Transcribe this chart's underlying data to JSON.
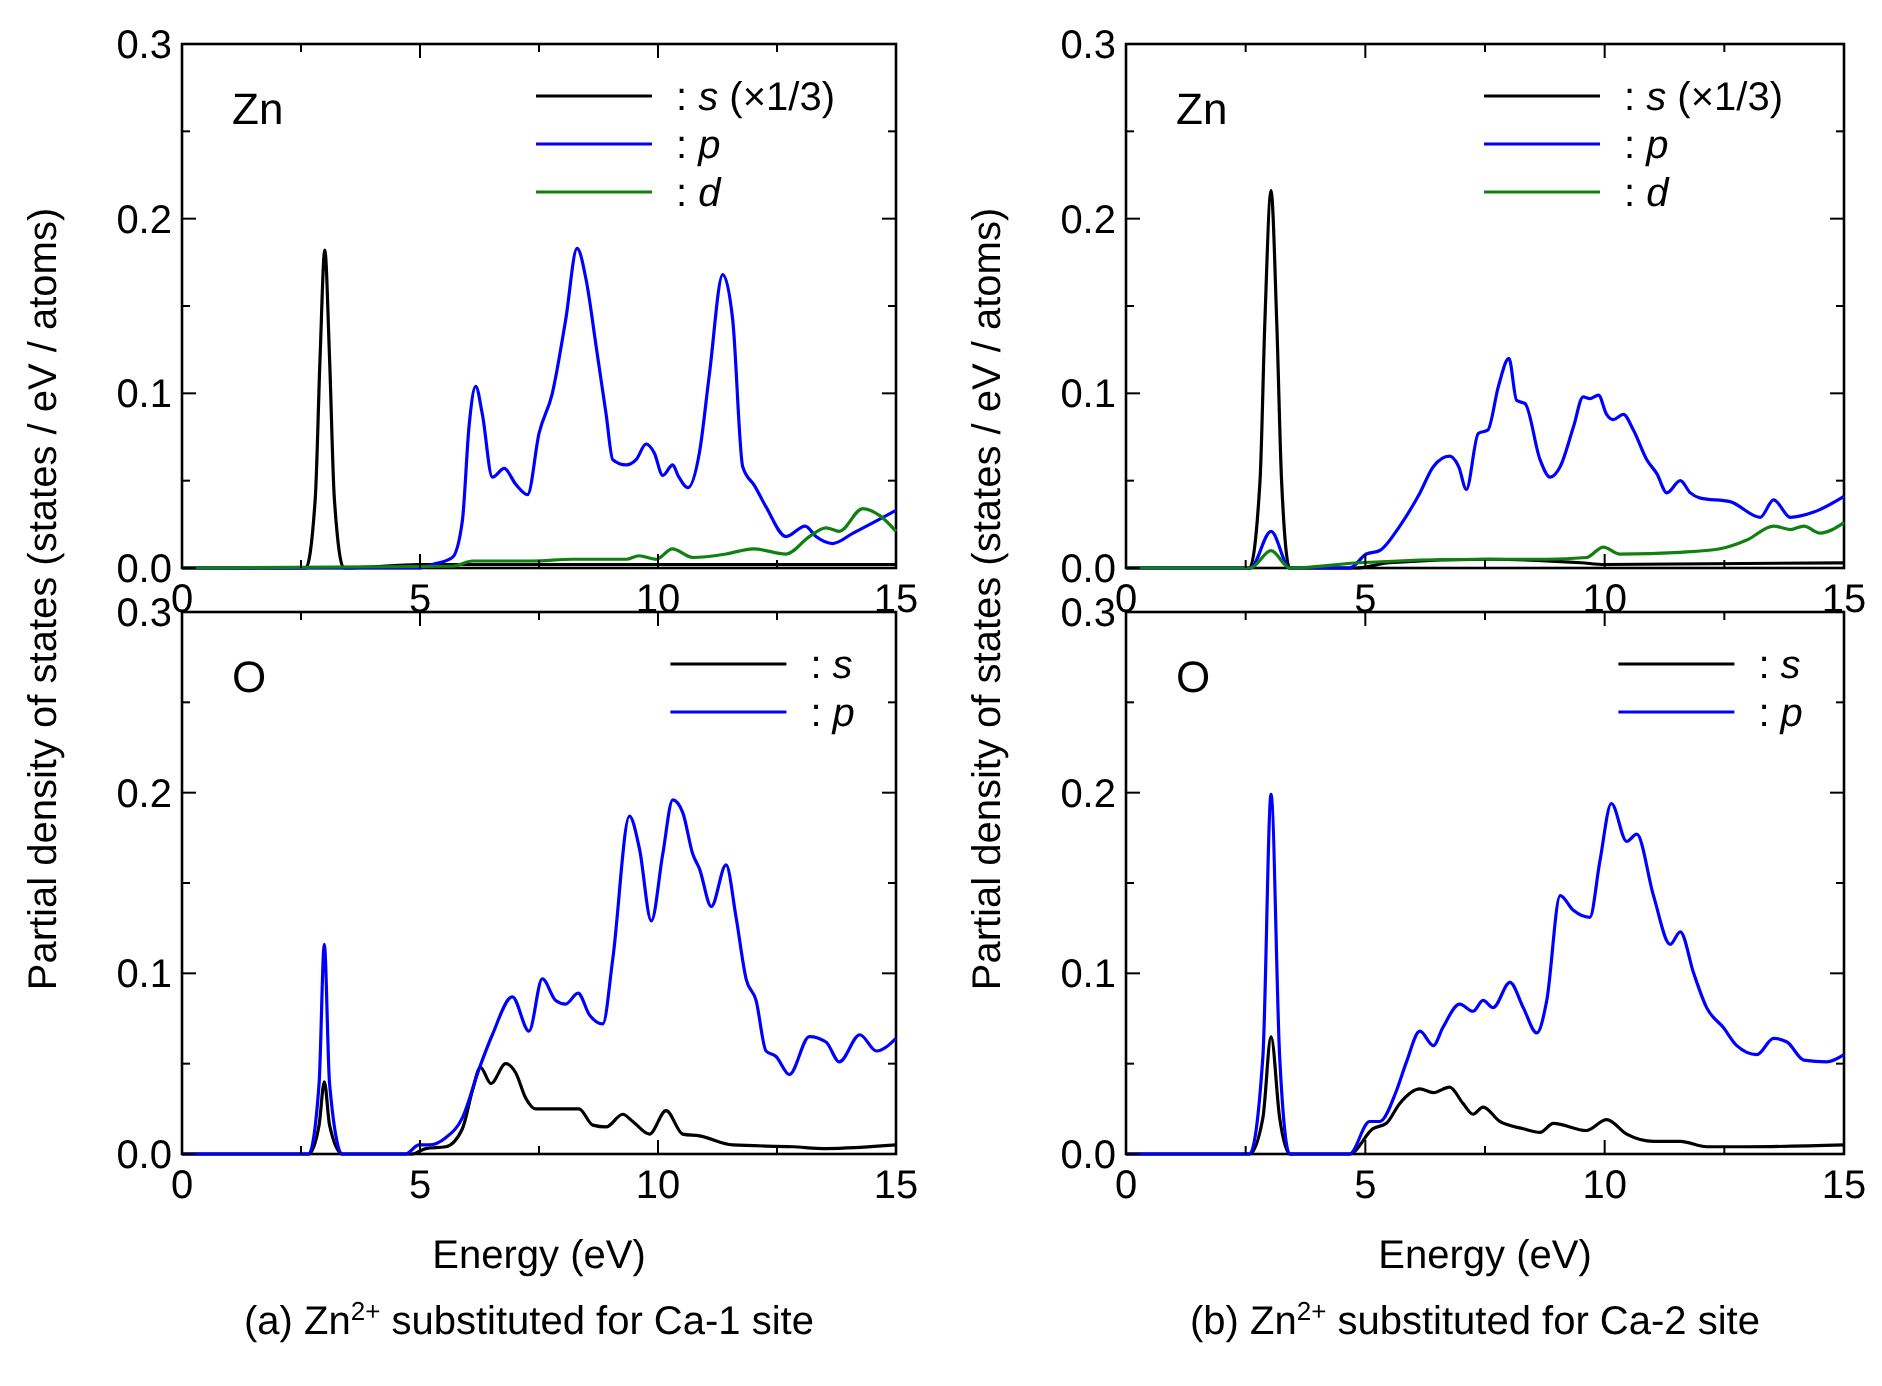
{
  "chart_data": [
    {
      "type": "line",
      "ylabel": "Partial density of states (states / eV / atoms)",
      "annotations": [
        "Zn"
      ],
      "legend": "top right",
      "xlim": [
        0,
        15
      ],
      "ylim": [
        0,
        0.3
      ],
      "xticks": [
        0,
        {
          "value": 2.5,
          "label": null
        },
        5,
        {
          "value": 7.5,
          "label": null
        },
        10,
        {
          "value": 12.5,
          "label": null
        },
        15
      ],
      "yticks": [
        {
          "value": 0,
          "label": "0.0"
        },
        {
          "value": 0.05,
          "label": null
        },
        0.1,
        {
          "value": 0.15,
          "label": null
        },
        0.2,
        {
          "value": 0.25,
          "label": null
        },
        0.3
      ],
      "series": [
        {
          "name": ": s (×1/3)",
          "color": "#000000",
          "x": [
            0,
            2.6,
            2.8,
            2.9,
            3.0,
            3.1,
            3.2,
            3.4,
            5,
            15
          ],
          "values": [
            0,
            0,
            0.04,
            0.12,
            0.182,
            0.12,
            0.04,
            0,
            0.002,
            0.002
          ]
        },
        {
          "name": ": p",
          "color": "#0000ff",
          "x": [
            0,
            4.98,
            5.26,
            5.68,
            5.89,
            6.03,
            6.17,
            6.31,
            6.52,
            6.77,
            7.01,
            7.26,
            7.5,
            7.78,
            8.06,
            8.3,
            8.49,
            8.7,
            8.91,
            9.05,
            9.33,
            9.54,
            9.75,
            9.92,
            10.1,
            10.31,
            10.42,
            10.63,
            10.87,
            11.08,
            11.36,
            11.57,
            11.78,
            12.03,
            12.27,
            12.69,
            13.09,
            13.32,
            13.67,
            14.1,
            14.52,
            15
          ],
          "values": [
            0,
            0,
            0.002,
            0.006,
            0.027,
            0.081,
            0.104,
            0.088,
            0.052,
            0.057,
            0.048,
            0.042,
            0.077,
            0.1,
            0.142,
            0.183,
            0.165,
            0.127,
            0.088,
            0.062,
            0.059,
            0.062,
            0.071,
            0.066,
            0.053,
            0.059,
            0.053,
            0.046,
            0.066,
            0.111,
            0.168,
            0.142,
            0.058,
            0.047,
            0.035,
            0.018,
            0.024,
            0.018,
            0.014,
            0.02,
            0.026,
            0.033
          ]
        },
        {
          "name": ": d",
          "color": "#108010",
          "x": [
            0,
            5.68,
            6.1,
            7.36,
            8.2,
            9.33,
            9.6,
            9.96,
            10.3,
            10.73,
            11.43,
            12,
            12.69,
            13.18,
            13.53,
            13.81,
            14.3,
            14.66,
            15
          ],
          "values": [
            0,
            0.001,
            0.004,
            0.004,
            0.005,
            0.005,
            0.007,
            0.005,
            0.011,
            0.006,
            0.008,
            0.011,
            0.008,
            0.018,
            0.023,
            0.021,
            0.034,
            0.03,
            0.021
          ]
        }
      ]
    },
    {
      "type": "line",
      "ylabel": "Partial density of states (states / eV / atoms)",
      "annotations": [
        "Zn"
      ],
      "legend": "top right",
      "xlim": [
        0,
        15
      ],
      "ylim": [
        0,
        0.3
      ],
      "xticks": [
        0,
        {
          "value": 2.5,
          "label": null
        },
        5,
        {
          "value": 7.5,
          "label": null
        },
        10,
        {
          "value": 12.5,
          "label": null
        },
        15
      ],
      "yticks": [
        {
          "value": 0,
          "label": "0.0"
        },
        {
          "value": 0.05,
          "label": null
        },
        0.1,
        {
          "value": 0.15,
          "label": null
        },
        0.2,
        {
          "value": 0.25,
          "label": null
        },
        0.3
      ],
      "series": [
        {
          "name": ": s (×1/3)",
          "color": "#000000",
          "x": [
            0,
            2.58,
            2.8,
            2.9,
            3.03,
            3.15,
            3.25,
            3.42,
            4.8,
            5.5,
            7.6,
            9.5,
            10,
            15
          ],
          "values": [
            0,
            0,
            0.05,
            0.14,
            0.216,
            0.14,
            0.05,
            0,
            0,
            0.003,
            0.005,
            0.003,
            0.002,
            0.003
          ]
        },
        {
          "name": ": p",
          "color": "#0000ff",
          "x": [
            0,
            2.6,
            3.03,
            3.42,
            4.67,
            5.02,
            5.3,
            5.72,
            6.14,
            6.42,
            6.76,
            6.95,
            7.11,
            7.36,
            7.56,
            7.78,
            8.0,
            8.16,
            8.34,
            8.65,
            8.86,
            9.07,
            9.35,
            9.55,
            9.69,
            9.87,
            10.04,
            10.18,
            10.39,
            10.6,
            10.88,
            11.09,
            11.3,
            11.58,
            11.79,
            12.0,
            12.62,
            13.25,
            13.53,
            13.88,
            14.37,
            15
          ],
          "values": [
            0,
            0,
            0.021,
            0,
            0,
            0.008,
            0.01,
            0.024,
            0.043,
            0.058,
            0.064,
            0.058,
            0.045,
            0.077,
            0.079,
            0.104,
            0.12,
            0.096,
            0.094,
            0.062,
            0.052,
            0.058,
            0.081,
            0.098,
            0.097,
            0.099,
            0.088,
            0.085,
            0.088,
            0.079,
            0.062,
            0.054,
            0.043,
            0.05,
            0.043,
            0.04,
            0.038,
            0.029,
            0.039,
            0.029,
            0.032,
            0.041
          ]
        },
        {
          "name": ": d",
          "color": "#108010",
          "x": [
            0,
            2.6,
            3.03,
            3.42,
            4.88,
            7.39,
            8.79,
            9.62,
            9.97,
            10.32,
            11.58,
            12.41,
            12.97,
            13.53,
            13.88,
            14.16,
            14.5,
            15
          ],
          "values": [
            0,
            0,
            0.01,
            0,
            0.003,
            0.005,
            0.005,
            0.006,
            0.012,
            0.008,
            0.009,
            0.011,
            0.016,
            0.024,
            0.022,
            0.024,
            0.02,
            0.026
          ]
        }
      ]
    },
    {
      "type": "line",
      "xlabel": "Energy (eV)",
      "annotations": [
        "O",
        "(a) Zn$^{2+}$ substituted for Ca-1 site"
      ],
      "legend": "top right",
      "xlim": [
        0,
        15
      ],
      "ylim": [
        0,
        0.3
      ],
      "xticks": [
        0,
        {
          "value": 2.5,
          "label": null
        },
        5,
        {
          "value": 7.5,
          "label": null
        },
        10,
        {
          "value": 12.5,
          "label": null
        },
        15
      ],
      "yticks": [
        {
          "value": 0,
          "label": "0.0"
        },
        {
          "value": 0.05,
          "label": null
        },
        0.1,
        {
          "value": 0.15,
          "label": null
        },
        0.2,
        {
          "value": 0.25,
          "label": null
        },
        0.3
      ],
      "series": [
        {
          "name": ": s",
          "color": "#000000",
          "x": [
            0,
            2.66,
            2.88,
            2.99,
            3.1,
            3.37,
            4.84,
            5.12,
            5.54,
            5.89,
            6.1,
            6.27,
            6.49,
            6.8,
            7.01,
            7.22,
            7.43,
            7.92,
            8.34,
            8.63,
            8.91,
            9.26,
            9.47,
            9.82,
            10.17,
            10.52,
            10.87,
            11.57,
            12.83,
            13.53,
            15
          ],
          "values": [
            0,
            0,
            0.016,
            0.04,
            0.016,
            0,
            0,
            0.003,
            0.004,
            0.014,
            0.035,
            0.048,
            0.039,
            0.05,
            0.045,
            0.031,
            0.025,
            0.025,
            0.025,
            0.016,
            0.015,
            0.022,
            0.018,
            0.011,
            0.024,
            0.011,
            0.01,
            0.005,
            0.004,
            0.003,
            0.005
          ]
        },
        {
          "name": ": p",
          "color": "#0000ff",
          "x": [
            0,
            2.66,
            2.88,
            2.99,
            3.1,
            3.37,
            4.7,
            4.98,
            5.19,
            5.54,
            5.89,
            6.24,
            6.52,
            6.94,
            7.29,
            7.57,
            7.85,
            8.06,
            8.32,
            8.56,
            8.84,
            9.05,
            9.4,
            9.61,
            9.86,
            10.1,
            10.31,
            10.52,
            10.73,
            10.87,
            11.12,
            11.43,
            11.64,
            11.85,
            12.06,
            12.27,
            12.48,
            12.76,
            13.18,
            13.53,
            13.81,
            14.24,
            14.59,
            15
          ],
          "values": [
            0,
            0,
            0.039,
            0.116,
            0.039,
            0,
            0,
            0.005,
            0.005,
            0.009,
            0.02,
            0.047,
            0.066,
            0.087,
            0.068,
            0.097,
            0.085,
            0.083,
            0.089,
            0.077,
            0.072,
            0.108,
            0.187,
            0.169,
            0.129,
            0.166,
            0.196,
            0.189,
            0.166,
            0.158,
            0.137,
            0.16,
            0.131,
            0.097,
            0.085,
            0.057,
            0.054,
            0.044,
            0.065,
            0.062,
            0.051,
            0.066,
            0.057,
            0.064
          ]
        }
      ]
    },
    {
      "type": "line",
      "xlabel": "Energy (eV)",
      "annotations": [
        "O",
        "(b) Zn$^{2+}$ substituted for Ca-2 site"
      ],
      "legend": "top right",
      "xlim": [
        0,
        15
      ],
      "ylim": [
        0,
        0.3
      ],
      "xticks": [
        0,
        {
          "value": 2.5,
          "label": null
        },
        5,
        {
          "value": 7.5,
          "label": null
        },
        10,
        {
          "value": 12.5,
          "label": null
        },
        15
      ],
      "yticks": [
        {
          "value": 0,
          "label": "0.0"
        },
        {
          "value": 0.05,
          "label": null
        },
        0.1,
        {
          "value": 0.15,
          "label": null
        },
        0.2,
        {
          "value": 0.25,
          "label": null
        },
        0.3
      ],
      "series": [
        {
          "name": ": s",
          "color": "#000000",
          "x": [
            0,
            2.58,
            2.86,
            3.03,
            3.21,
            3.42,
            4.67,
            5.16,
            5.44,
            5.72,
            6.14,
            6.42,
            6.76,
            7.04,
            7.25,
            7.46,
            7.81,
            8.3,
            8.65,
            8.93,
            9.62,
            10.04,
            10.46,
            11.02,
            11.58,
            12.13,
            12.97,
            15
          ],
          "values": [
            0,
            0,
            0.02,
            0.065,
            0.02,
            0,
            0,
            0.014,
            0.017,
            0.028,
            0.036,
            0.034,
            0.037,
            0.028,
            0.022,
            0.026,
            0.018,
            0.014,
            0.012,
            0.017,
            0.013,
            0.019,
            0.011,
            0.007,
            0.007,
            0.004,
            0.004,
            0.005
          ]
        },
        {
          "name": ": p",
          "color": "#0000ff",
          "x": [
            0,
            2.58,
            2.86,
            3.03,
            3.21,
            3.42,
            4.67,
            5.09,
            5.3,
            5.65,
            5.86,
            6.14,
            6.42,
            6.62,
            6.97,
            7.25,
            7.46,
            7.67,
            8.02,
            8.3,
            8.58,
            8.79,
            9.07,
            9.34,
            9.69,
            9.9,
            10.14,
            10.46,
            10.67,
            11.02,
            11.37,
            11.58,
            11.86,
            12.13,
            12.48,
            12.76,
            13.18,
            13.53,
            13.81,
            14.16,
            14.64,
            15
          ],
          "values": [
            0,
            0,
            0.054,
            0.199,
            0.054,
            0,
            0,
            0.018,
            0.018,
            0.035,
            0.051,
            0.068,
            0.06,
            0.07,
            0.083,
            0.079,
            0.085,
            0.081,
            0.095,
            0.081,
            0.067,
            0.085,
            0.143,
            0.135,
            0.131,
            0.162,
            0.194,
            0.173,
            0.177,
            0.143,
            0.116,
            0.123,
            0.1,
            0.081,
            0.07,
            0.06,
            0.055,
            0.064,
            0.062,
            0.052,
            0.051,
            0.055
          ]
        }
      ]
    }
  ]
}
